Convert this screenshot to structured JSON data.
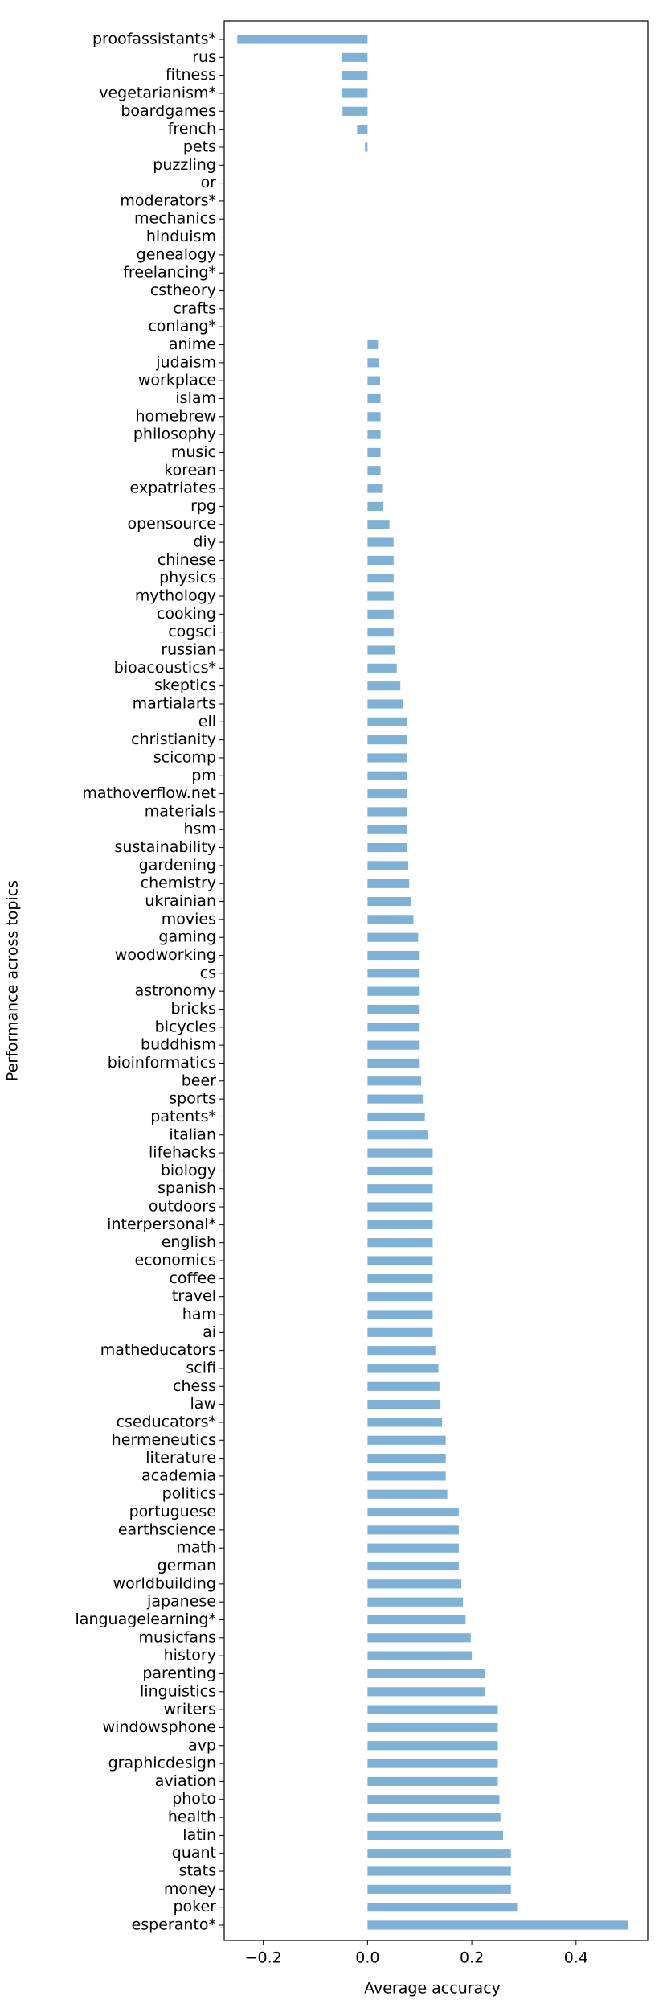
{
  "chart_data": {
    "type": "barh",
    "xlabel": "Average accuracy",
    "ylabel": "Performance across topics",
    "color": "#7fb0d5",
    "categories": [
      "proofassistants*",
      "rus",
      "fitness",
      "vegetarianism*",
      "boardgames",
      "french",
      "pets",
      "puzzling",
      "or",
      "moderators*",
      "mechanics",
      "hinduism",
      "genealogy",
      "freelancing*",
      "cstheory",
      "crafts",
      "conlang*",
      "anime",
      "judaism",
      "workplace",
      "islam",
      "homebrew",
      "philosophy",
      "music",
      "korean",
      "expatriates",
      "rpg",
      "opensource",
      "diy",
      "chinese",
      "physics",
      "mythology",
      "cooking",
      "cogsci",
      "russian",
      "bioacoustics*",
      "skeptics",
      "martialarts",
      "ell",
      "christianity",
      "scicomp",
      "pm",
      "mathoverflow.net",
      "materials",
      "hsm",
      "sustainability",
      "gardening",
      "chemistry",
      "ukrainian",
      "movies",
      "gaming",
      "woodworking",
      "cs",
      "astronomy",
      "bricks",
      "bicycles",
      "buddhism",
      "bioinformatics",
      "beer",
      "sports",
      "patents*",
      "italian",
      "lifehacks",
      "biology",
      "spanish",
      "outdoors",
      "interpersonal*",
      "english",
      "economics",
      "coffee",
      "travel",
      "ham",
      "ai",
      "matheducators",
      "scifi",
      "chess",
      "law",
      "cseducators*",
      "hermeneutics",
      "literature",
      "academia",
      "politics",
      "portuguese",
      "earthscience",
      "math",
      "german",
      "worldbuilding",
      "japanese",
      "languagelearning*",
      "musicfans",
      "history",
      "parenting",
      "linguistics",
      "writers",
      "windowsphone",
      "avp",
      "graphicdesign",
      "aviation",
      "photo",
      "health",
      "latin",
      "quant",
      "stats",
      "money",
      "poker",
      "esperanto*"
    ],
    "values": [
      -0.25,
      -0.05,
      -0.05,
      -0.05,
      -0.048,
      -0.02,
      -0.005,
      0,
      0,
      0,
      0,
      0,
      0,
      0,
      0,
      0,
      0,
      0.02,
      0.022,
      0.024,
      0.025,
      0.025,
      0.025,
      0.025,
      0.025,
      0.028,
      0.03,
      0.042,
      0.05,
      0.05,
      0.05,
      0.05,
      0.05,
      0.05,
      0.053,
      0.056,
      0.063,
      0.068,
      0.075,
      0.075,
      0.075,
      0.075,
      0.075,
      0.075,
      0.075,
      0.075,
      0.078,
      0.08,
      0.083,
      0.088,
      0.097,
      0.1,
      0.1,
      0.1,
      0.1,
      0.1,
      0.1,
      0.1,
      0.103,
      0.106,
      0.11,
      0.115,
      0.125,
      0.125,
      0.125,
      0.125,
      0.125,
      0.125,
      0.125,
      0.125,
      0.125,
      0.125,
      0.125,
      0.13,
      0.136,
      0.138,
      0.14,
      0.143,
      0.15,
      0.15,
      0.15,
      0.153,
      0.175,
      0.175,
      0.175,
      0.175,
      0.18,
      0.183,
      0.188,
      0.198,
      0.2,
      0.225,
      0.225,
      0.25,
      0.25,
      0.25,
      0.25,
      0.25,
      0.253,
      0.255,
      0.26,
      0.275,
      0.275,
      0.275,
      0.287,
      0.5
    ],
    "xlim": [
      -0.275,
      0.5375
    ],
    "xticks": [
      {
        "value": -0.2,
        "label": "−0.2"
      },
      {
        "value": 0,
        "label": "0.0"
      },
      0.2,
      0.4
    ]
  }
}
